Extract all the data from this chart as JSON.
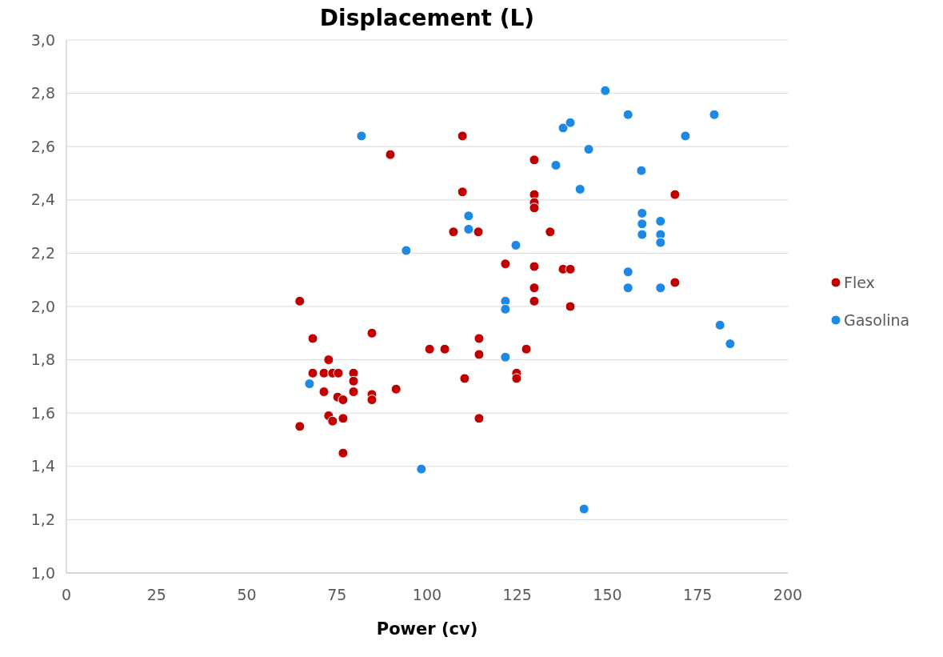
{
  "chart_data": {
    "type": "scatter",
    "title": "Displacement (L)",
    "xlabel": "Power (cv)",
    "xlim": [
      0,
      200
    ],
    "xticks": [
      0,
      25,
      50,
      75,
      100,
      125,
      150,
      175,
      200
    ],
    "ylim": [
      1.0,
      3.0
    ],
    "yticks": [
      {
        "value": 1.0,
        "label": "1,0"
      },
      {
        "value": 1.2,
        "label": "1,2"
      },
      {
        "value": 1.4,
        "label": "1,4"
      },
      {
        "value": 1.6,
        "label": "1,6"
      },
      {
        "value": 1.8,
        "label": "1,8"
      },
      {
        "value": 2.0,
        "label": "2,0"
      },
      {
        "value": 2.2,
        "label": "2,2"
      },
      {
        "value": 2.4,
        "label": "2,4"
      },
      {
        "value": 2.6,
        "label": "2,6"
      },
      {
        "value": 2.8,
        "label": "2,8"
      },
      {
        "value": 3.0,
        "label": "3,0"
      }
    ],
    "grid": "y",
    "legend": "right",
    "marker": "circle",
    "series": [
      {
        "name": "Flex",
        "color": "#c00000",
        "x": [
          64.7,
          68.3,
          68.3,
          71.4,
          73.8,
          75.4,
          79.6,
          79.6,
          72.7,
          64.7,
          84.7,
          71.4,
          75.2,
          76.7,
          79.6,
          84.7,
          84.7,
          91.4,
          72.7,
          73.8,
          76.7,
          76.7,
          100.7,
          104.9,
          114.4,
          114.4,
          110.4,
          114.4,
          129.7,
          129.7,
          139.7,
          127.5,
          124.8,
          124.8,
          109.8,
          89.8,
          129.7,
          109.8,
          129.7,
          129.7,
          129.7,
          107.3,
          114.2,
          134.1,
          121.7,
          129.7,
          137.7,
          139.7,
          168.7,
          168.7
        ],
        "values": [
          2.02,
          1.88,
          1.75,
          1.75,
          1.75,
          1.75,
          1.75,
          1.72,
          1.8,
          1.55,
          1.9,
          1.68,
          1.66,
          1.65,
          1.68,
          1.67,
          1.65,
          1.69,
          1.59,
          1.57,
          1.58,
          1.45,
          1.84,
          1.84,
          1.88,
          1.82,
          1.73,
          1.58,
          2.07,
          2.02,
          2.0,
          1.84,
          1.75,
          1.73,
          2.64,
          2.57,
          2.55,
          2.43,
          2.42,
          2.39,
          2.37,
          2.28,
          2.28,
          2.28,
          2.16,
          2.15,
          2.14,
          2.14,
          2.42,
          2.09
        ]
      },
      {
        "name": "Gasolina",
        "color": "#1e88e5",
        "x": [
          81.8,
          111.5,
          111.5,
          94.2,
          67.4,
          98.4,
          121.7,
          121.7,
          121.7,
          124.6,
          135.7,
          142.4,
          144.8,
          149.4,
          155.7,
          179.6,
          137.7,
          139.7,
          171.6,
          159.4,
          159.6,
          159.6,
          159.6,
          164.7,
          164.7,
          164.7,
          155.7,
          155.7,
          164.7,
          181.2,
          184.0,
          143.5
        ],
        "values": [
          2.64,
          2.34,
          2.29,
          2.21,
          1.71,
          1.39,
          2.02,
          1.99,
          1.81,
          2.23,
          2.53,
          2.44,
          2.59,
          2.81,
          2.72,
          2.72,
          2.67,
          2.69,
          2.64,
          2.51,
          2.35,
          2.31,
          2.27,
          2.32,
          2.27,
          2.24,
          2.13,
          2.07,
          2.07,
          1.93,
          1.86,
          1.24
        ]
      }
    ]
  }
}
